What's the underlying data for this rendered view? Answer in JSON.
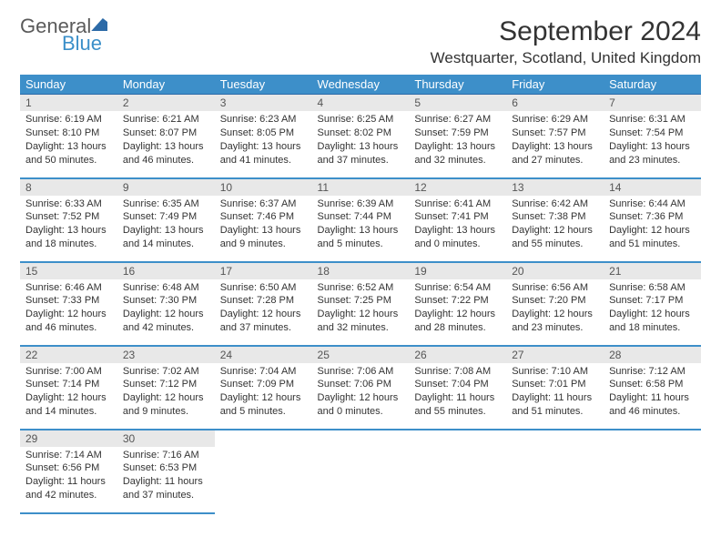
{
  "logo": {
    "general": "General",
    "blue": "Blue"
  },
  "title": "September 2024",
  "location": "Westquarter, Scotland, United Kingdom",
  "weekdays": [
    "Sunday",
    "Monday",
    "Tuesday",
    "Wednesday",
    "Thursday",
    "Friday",
    "Saturday"
  ],
  "colors": {
    "header_bg": "#3d8fc9",
    "header_text": "#ffffff",
    "row_border": "#3d8fc9",
    "daynum_bg": "#e8e8e8",
    "text": "#333333",
    "logo_blue": "#3b8fc9",
    "logo_gray": "#5a5a5a"
  },
  "calendar": {
    "leading_blanks": 0,
    "days": [
      {
        "n": 1,
        "sunrise": "6:19 AM",
        "sunset": "8:10 PM",
        "daylight": "13 hours and 50 minutes."
      },
      {
        "n": 2,
        "sunrise": "6:21 AM",
        "sunset": "8:07 PM",
        "daylight": "13 hours and 46 minutes."
      },
      {
        "n": 3,
        "sunrise": "6:23 AM",
        "sunset": "8:05 PM",
        "daylight": "13 hours and 41 minutes."
      },
      {
        "n": 4,
        "sunrise": "6:25 AM",
        "sunset": "8:02 PM",
        "daylight": "13 hours and 37 minutes."
      },
      {
        "n": 5,
        "sunrise": "6:27 AM",
        "sunset": "7:59 PM",
        "daylight": "13 hours and 32 minutes."
      },
      {
        "n": 6,
        "sunrise": "6:29 AM",
        "sunset": "7:57 PM",
        "daylight": "13 hours and 27 minutes."
      },
      {
        "n": 7,
        "sunrise": "6:31 AM",
        "sunset": "7:54 PM",
        "daylight": "13 hours and 23 minutes."
      },
      {
        "n": 8,
        "sunrise": "6:33 AM",
        "sunset": "7:52 PM",
        "daylight": "13 hours and 18 minutes."
      },
      {
        "n": 9,
        "sunrise": "6:35 AM",
        "sunset": "7:49 PM",
        "daylight": "13 hours and 14 minutes."
      },
      {
        "n": 10,
        "sunrise": "6:37 AM",
        "sunset": "7:46 PM",
        "daylight": "13 hours and 9 minutes."
      },
      {
        "n": 11,
        "sunrise": "6:39 AM",
        "sunset": "7:44 PM",
        "daylight": "13 hours and 5 minutes."
      },
      {
        "n": 12,
        "sunrise": "6:41 AM",
        "sunset": "7:41 PM",
        "daylight": "13 hours and 0 minutes."
      },
      {
        "n": 13,
        "sunrise": "6:42 AM",
        "sunset": "7:38 PM",
        "daylight": "12 hours and 55 minutes."
      },
      {
        "n": 14,
        "sunrise": "6:44 AM",
        "sunset": "7:36 PM",
        "daylight": "12 hours and 51 minutes."
      },
      {
        "n": 15,
        "sunrise": "6:46 AM",
        "sunset": "7:33 PM",
        "daylight": "12 hours and 46 minutes."
      },
      {
        "n": 16,
        "sunrise": "6:48 AM",
        "sunset": "7:30 PM",
        "daylight": "12 hours and 42 minutes."
      },
      {
        "n": 17,
        "sunrise": "6:50 AM",
        "sunset": "7:28 PM",
        "daylight": "12 hours and 37 minutes."
      },
      {
        "n": 18,
        "sunrise": "6:52 AM",
        "sunset": "7:25 PM",
        "daylight": "12 hours and 32 minutes."
      },
      {
        "n": 19,
        "sunrise": "6:54 AM",
        "sunset": "7:22 PM",
        "daylight": "12 hours and 28 minutes."
      },
      {
        "n": 20,
        "sunrise": "6:56 AM",
        "sunset": "7:20 PM",
        "daylight": "12 hours and 23 minutes."
      },
      {
        "n": 21,
        "sunrise": "6:58 AM",
        "sunset": "7:17 PM",
        "daylight": "12 hours and 18 minutes."
      },
      {
        "n": 22,
        "sunrise": "7:00 AM",
        "sunset": "7:14 PM",
        "daylight": "12 hours and 14 minutes."
      },
      {
        "n": 23,
        "sunrise": "7:02 AM",
        "sunset": "7:12 PM",
        "daylight": "12 hours and 9 minutes."
      },
      {
        "n": 24,
        "sunrise": "7:04 AM",
        "sunset": "7:09 PM",
        "daylight": "12 hours and 5 minutes."
      },
      {
        "n": 25,
        "sunrise": "7:06 AM",
        "sunset": "7:06 PM",
        "daylight": "12 hours and 0 minutes."
      },
      {
        "n": 26,
        "sunrise": "7:08 AM",
        "sunset": "7:04 PM",
        "daylight": "11 hours and 55 minutes."
      },
      {
        "n": 27,
        "sunrise": "7:10 AM",
        "sunset": "7:01 PM",
        "daylight": "11 hours and 51 minutes."
      },
      {
        "n": 28,
        "sunrise": "7:12 AM",
        "sunset": "6:58 PM",
        "daylight": "11 hours and 46 minutes."
      },
      {
        "n": 29,
        "sunrise": "7:14 AM",
        "sunset": "6:56 PM",
        "daylight": "11 hours and 42 minutes."
      },
      {
        "n": 30,
        "sunrise": "7:16 AM",
        "sunset": "6:53 PM",
        "daylight": "11 hours and 37 minutes."
      }
    ]
  },
  "labels": {
    "sunrise": "Sunrise:",
    "sunset": "Sunset:",
    "daylight": "Daylight:"
  }
}
